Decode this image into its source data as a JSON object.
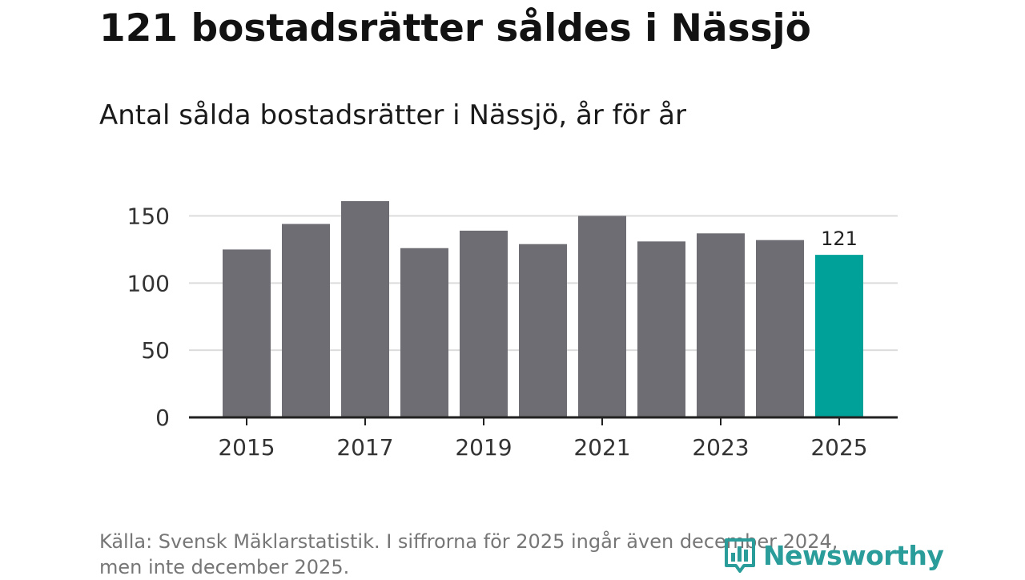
{
  "header": {
    "title": "121 bostadsrätter såldes i Nässjö",
    "subtitle": "Antal sålda bostadsrätter i Nässjö, år för år"
  },
  "chart_data": {
    "type": "bar",
    "title": "121 bostadsrätter såldes i Nässjö",
    "subtitle": "Antal sålda bostadsrätter i Nässjö, år för år",
    "categories": [
      "2015",
      "2016",
      "2017",
      "2018",
      "2019",
      "2020",
      "2021",
      "2022",
      "2023",
      "2024",
      "2025"
    ],
    "values": [
      125,
      144,
      161,
      126,
      139,
      129,
      150,
      131,
      137,
      132,
      121
    ],
    "x_tick_labels": [
      "2015",
      "2017",
      "2019",
      "2021",
      "2023",
      "2025"
    ],
    "y_ticks": [
      0,
      50,
      100,
      150
    ],
    "ylim": [
      0,
      165
    ],
    "grid": true,
    "highlight": {
      "category": "2025",
      "value_label": "121"
    },
    "colors": {
      "bar": "#6e6d74",
      "highlight": "#00a198",
      "grid": "#dcdcdc",
      "axis": "#222222"
    },
    "xlabel": "",
    "ylabel": ""
  },
  "footer": {
    "source_line1": "Källa: Svensk Mäklarstatistik. I siffrorna för 2025 ingår även december 2024,",
    "source_line2": "men inte december 2025.",
    "logo_text": "Newsworthy",
    "logo_icon": "bar-chart-logo-icon"
  }
}
